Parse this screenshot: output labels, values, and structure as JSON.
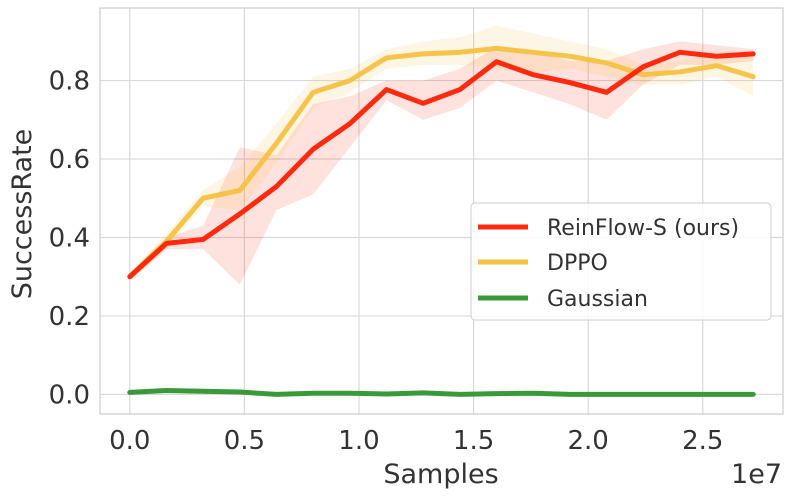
{
  "chart_data": {
    "type": "line",
    "xlabel": "Samples",
    "ylabel": "SuccessRate",
    "x_offset_label": "1e7",
    "xlim": [
      -0.13,
      2.85
    ],
    "ylim": [
      -0.05,
      0.985
    ],
    "xticks": [
      0.0,
      0.5,
      1.0,
      1.5,
      2.0,
      2.5
    ],
    "xtick_labels": [
      "0.0",
      "0.5",
      "1.0",
      "1.5",
      "2.0",
      "2.5"
    ],
    "yticks": [
      0.0,
      0.2,
      0.4,
      0.6,
      0.8
    ],
    "ytick_labels": [
      "0.0",
      "0.2",
      "0.4",
      "0.6",
      "0.8"
    ],
    "grid": true,
    "legend_position": "right",
    "series": [
      {
        "name": "ReinFlow-S (ours)",
        "color": "#ff2a0e",
        "x": [
          0.0,
          0.16,
          0.32,
          0.48,
          0.64,
          0.8,
          0.96,
          1.12,
          1.28,
          1.44,
          1.6,
          1.76,
          1.92,
          2.08,
          2.24,
          2.4,
          2.56,
          2.72
        ],
        "y": [
          0.3,
          0.385,
          0.395,
          0.46,
          0.53,
          0.625,
          0.69,
          0.777,
          0.742,
          0.777,
          0.848,
          0.815,
          0.795,
          0.77,
          0.835,
          0.872,
          0.862,
          0.868
        ],
        "band_upper": [
          0.31,
          0.4,
          0.43,
          0.63,
          0.61,
          0.74,
          0.76,
          0.8,
          0.8,
          0.83,
          0.885,
          0.875,
          0.85,
          0.85,
          0.88,
          0.9,
          0.89,
          0.88
        ],
        "band_lower": [
          0.29,
          0.37,
          0.37,
          0.28,
          0.47,
          0.51,
          0.63,
          0.75,
          0.7,
          0.73,
          0.8,
          0.77,
          0.74,
          0.7,
          0.79,
          0.84,
          0.84,
          0.85
        ]
      },
      {
        "name": "DPPO",
        "color": "#f5c142",
        "x": [
          0.0,
          0.16,
          0.32,
          0.48,
          0.64,
          0.8,
          0.96,
          1.12,
          1.28,
          1.44,
          1.6,
          1.76,
          1.92,
          2.08,
          2.24,
          2.4,
          2.56,
          2.72
        ],
        "y": [
          0.3,
          0.39,
          0.5,
          0.52,
          0.64,
          0.77,
          0.8,
          0.858,
          0.868,
          0.872,
          0.882,
          0.872,
          0.862,
          0.845,
          0.815,
          0.822,
          0.838,
          0.81
        ],
        "band_upper": [
          0.31,
          0.41,
          0.52,
          0.58,
          0.69,
          0.81,
          0.83,
          0.88,
          0.9,
          0.91,
          0.94,
          0.92,
          0.9,
          0.88,
          0.84,
          0.85,
          0.87,
          0.86
        ],
        "band_lower": [
          0.29,
          0.37,
          0.48,
          0.47,
          0.59,
          0.73,
          0.77,
          0.83,
          0.84,
          0.84,
          0.83,
          0.82,
          0.83,
          0.81,
          0.79,
          0.79,
          0.81,
          0.76
        ]
      },
      {
        "name": "Gaussian",
        "color": "#3a9a3a",
        "x": [
          0.0,
          0.16,
          0.32,
          0.48,
          0.64,
          0.8,
          0.96,
          1.12,
          1.28,
          1.44,
          1.6,
          1.76,
          1.92,
          2.08,
          2.24,
          2.4,
          2.56,
          2.72
        ],
        "y": [
          0.005,
          0.01,
          0.008,
          0.006,
          0.0,
          0.003,
          0.003,
          0.001,
          0.004,
          0.0,
          0.002,
          0.003,
          0.0,
          0.0,
          0.0,
          0.0,
          0.0,
          0.0
        ]
      }
    ]
  }
}
